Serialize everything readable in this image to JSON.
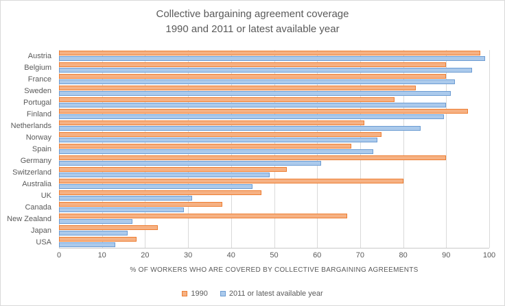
{
  "chart_data": {
    "type": "bar",
    "orientation": "horizontal",
    "title_lines": [
      "Collective  bargaining agreement  coverage",
      "1990 and 2011 or latest  available  year"
    ],
    "title": "Collective bargaining agreement coverage 1990 and 2011 or latest available year",
    "categories": [
      "Austria",
      "Belgium",
      "France",
      "Sweden",
      "Portugal",
      "Finland",
      "Netherlands",
      "Norway",
      "Spain",
      "Germany",
      "Switzerland",
      "Australia",
      "UK",
      "Canada",
      "New Zealand",
      "Japan",
      "USA"
    ],
    "series": [
      {
        "name": "1990",
        "color_fill": "#F6B183",
        "color_border": "#ED7D31",
        "values": [
          98,
          90,
          90,
          83,
          78,
          95,
          71,
          75,
          68,
          90,
          53,
          80,
          47,
          38,
          67,
          23,
          18
        ]
      },
      {
        "name": "2011 or latest available year",
        "color_fill": "#ABCAEC",
        "color_border": "#6B9BD2",
        "values": [
          99,
          96,
          92,
          91,
          90,
          89.5,
          84,
          74,
          73,
          61,
          49,
          45,
          31,
          29,
          17,
          16,
          13
        ]
      }
    ],
    "xlabel": "%  OF WORKERS WHO ARE COVERED BY COLLECTIVE BARGAINING AGREEMENTS",
    "xlim": [
      0,
      100
    ],
    "xticks": [
      0,
      10,
      20,
      30,
      40,
      50,
      60,
      70,
      80,
      90,
      100
    ],
    "grid": true,
    "legend_position": "bottom",
    "colors": {
      "title_text": "#595959",
      "axis_text": "#595959",
      "gridline": "#d9d9d9",
      "axis_line": "#c8c8c8",
      "chart_border": "#d9d9d9",
      "background": "#ffffff"
    }
  }
}
